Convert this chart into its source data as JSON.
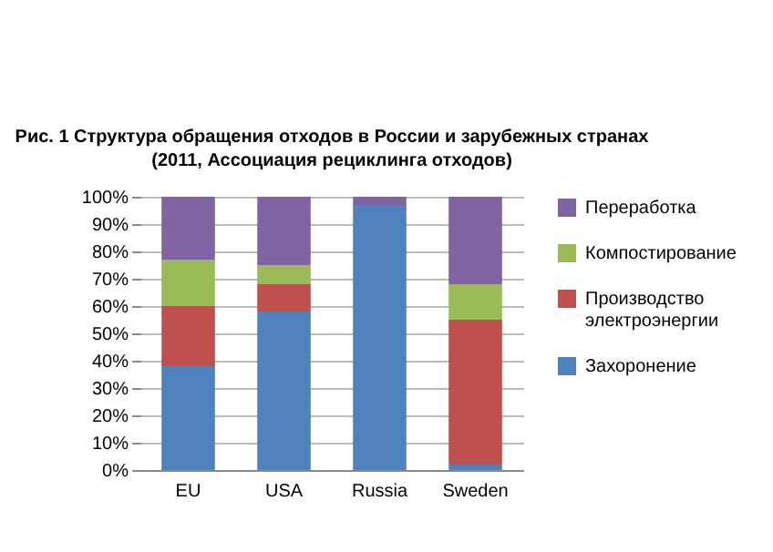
{
  "chart_data": {
    "type": "bar",
    "title": "Рис. 1 Структура обращения отходов в России и зарубежных странах",
    "subtitle": "(2011, Ассоциация рециклинга отходов)",
    "categories": [
      "EU",
      "USA",
      "Russia",
      "Sweden"
    ],
    "stacked": true,
    "series": [
      {
        "name": "Захоронение",
        "color": "#4f81bd",
        "values": [
          38,
          58,
          97,
          2
        ]
      },
      {
        "name": "Производство электроэнергии",
        "color": "#c0504d",
        "values": [
          22,
          10,
          0,
          53
        ]
      },
      {
        "name": "Компостирование",
        "color": "#9bbb59",
        "values": [
          17,
          7,
          0,
          13
        ]
      },
      {
        "name": "Переработка",
        "color": "#8064a2",
        "values": [
          23,
          25,
          3,
          32
        ]
      }
    ],
    "ylim": [
      0,
      100
    ],
    "yticks": [
      {
        "value": 0,
        "label": "0%"
      },
      {
        "value": 10,
        "label": "10%"
      },
      {
        "value": 20,
        "label": "20%"
      },
      {
        "value": 30,
        "label": "30%"
      },
      {
        "value": 40,
        "label": "40%"
      },
      {
        "value": 50,
        "label": "50%"
      },
      {
        "value": 60,
        "label": "60%"
      },
      {
        "value": 70,
        "label": "70%"
      },
      {
        "value": 80,
        "label": "80%"
      },
      {
        "value": 90,
        "label": "90%"
      },
      {
        "value": 100,
        "label": "100%"
      }
    ],
    "grid": "y",
    "legend": "right"
  }
}
